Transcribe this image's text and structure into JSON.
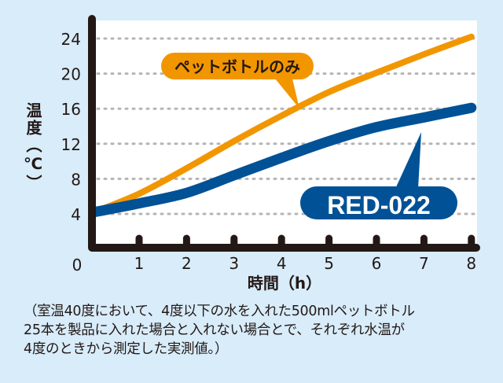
{
  "chart_data": {
    "type": "line",
    "title": "",
    "xlabel": "時間（h）",
    "ylabel": "温度（℃）",
    "xlim": [
      0,
      8
    ],
    "ylim": [
      0,
      24
    ],
    "x_ticks": [
      "1",
      "2",
      "3",
      "4",
      "5",
      "6",
      "7",
      "8"
    ],
    "y_ticks": [
      "4",
      "8",
      "12",
      "16",
      "20",
      "24"
    ],
    "origin_label": "0",
    "grid": "horizontal dotted",
    "x": [
      0,
      1,
      2,
      3,
      4,
      5,
      6,
      7,
      8
    ],
    "series": [
      {
        "name": "ペットボトルのみ",
        "color": "#f29600",
        "values": [
          4.2,
          6.3,
          9.2,
          12.3,
          15.2,
          17.9,
          20.1,
          22.2,
          24.2
        ]
      },
      {
        "name": "RED-022",
        "color": "#005196",
        "values": [
          4.2,
          5.2,
          6.4,
          8.4,
          10.4,
          12.3,
          13.9,
          15.0,
          16.1
        ]
      }
    ]
  },
  "caption": [
    "（室温40度において、4度以下の水を入れた500mlペットボトル",
    "25本を製品に入れた場合と入れない場合とで、それぞれ水温が",
    "4度のときから測定した実測値。）"
  ]
}
